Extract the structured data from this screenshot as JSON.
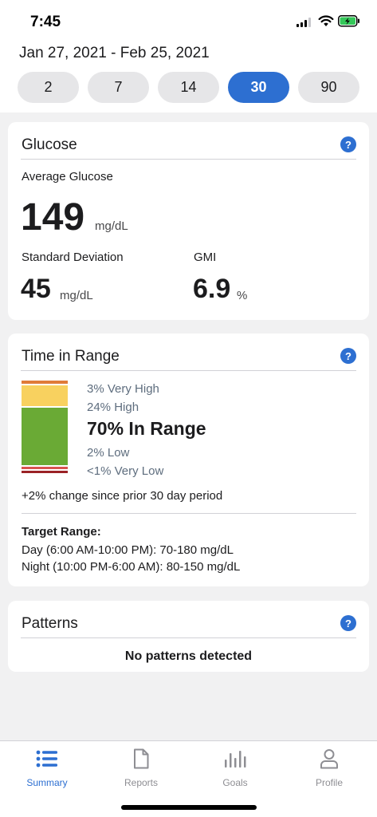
{
  "status_bar": {
    "time": "7:45"
  },
  "date_range": "Jan 27, 2021 - Feb 25, 2021",
  "period_options": [
    {
      "label": "2",
      "active": false
    },
    {
      "label": "7",
      "active": false
    },
    {
      "label": "14",
      "active": false
    },
    {
      "label": "30",
      "active": true
    },
    {
      "label": "90",
      "active": false
    }
  ],
  "glucose": {
    "title": "Glucose",
    "help": "?",
    "average_label": "Average Glucose",
    "average_value": "149",
    "average_unit": "mg/dL",
    "sd_label": "Standard Deviation",
    "sd_value": "45",
    "sd_unit": "mg/dL",
    "gmi_label": "GMI",
    "gmi_value": "6.9",
    "gmi_unit": "%"
  },
  "time_in_range": {
    "title": "Time in Range",
    "help": "?",
    "very_high": "3% Very High",
    "high": "24% High",
    "in_range": "70% In Range",
    "low": "2% Low",
    "very_low": "<1% Very Low",
    "change": "+2% change since prior 30 day period",
    "target_title": "Target Range:",
    "target_day": "Day (6:00 AM-10:00 PM): 70-180 mg/dL",
    "target_night": "Night (10:00 PM-6:00 AM): 80-150 mg/dL",
    "colors": {
      "very_high": "#e07b39",
      "high": "#f8d15f",
      "in_range": "#6aaa35",
      "low": "#d9534f",
      "very_low": "#9b2226"
    }
  },
  "patterns": {
    "title": "Patterns",
    "help": "?",
    "message": "No patterns detected"
  },
  "tabs": [
    {
      "label": "Summary",
      "icon": "list-icon",
      "active": true
    },
    {
      "label": "Reports",
      "icon": "document-icon",
      "active": false
    },
    {
      "label": "Goals",
      "icon": "bar-chart-icon",
      "active": false
    },
    {
      "label": "Profile",
      "icon": "person-icon",
      "active": false
    }
  ],
  "accent_color": "#2d6fd1"
}
